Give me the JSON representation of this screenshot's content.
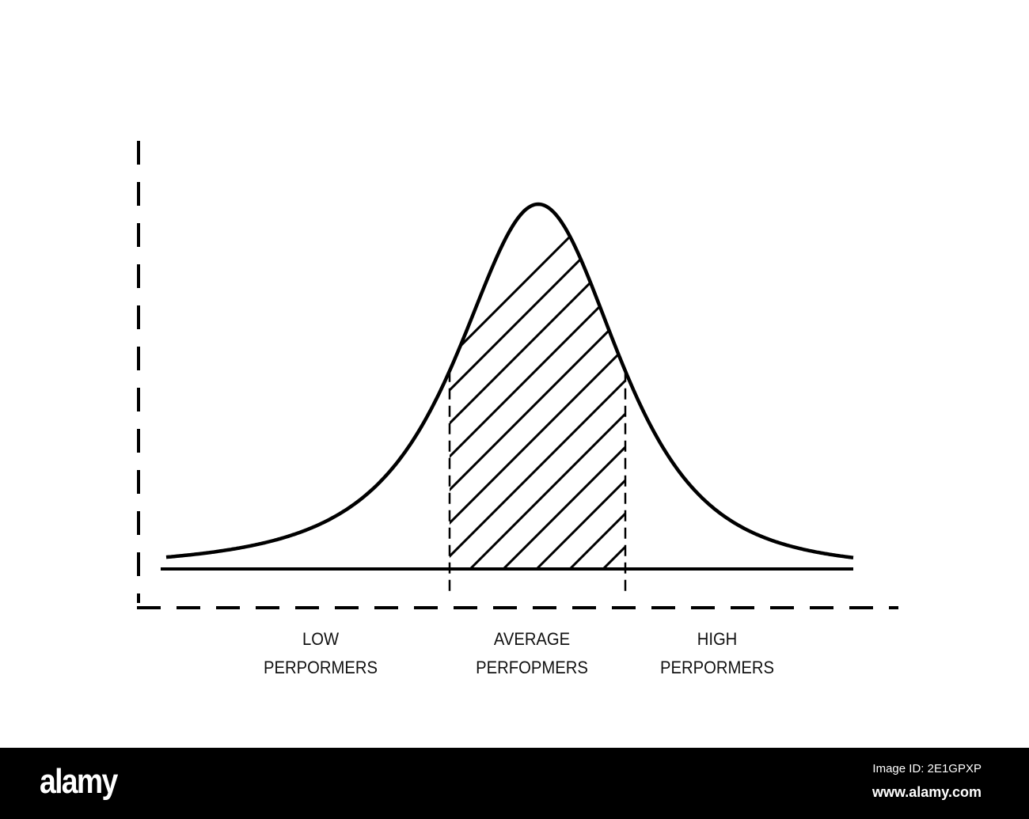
{
  "labels": {
    "low": [
      "LOW",
      "PERPORMERS"
    ],
    "average": [
      "AVERAGE",
      "PERFOPMERS"
    ],
    "high": [
      "HIGH",
      "PERPORMERS"
    ]
  },
  "watermark": {
    "logo": "alamy",
    "image_id": "Image ID: 2E1GPXP",
    "site": "www.alamy.com"
  },
  "colors": {
    "line": "#000000",
    "background": "#ffffff",
    "footer": "#000000"
  }
}
